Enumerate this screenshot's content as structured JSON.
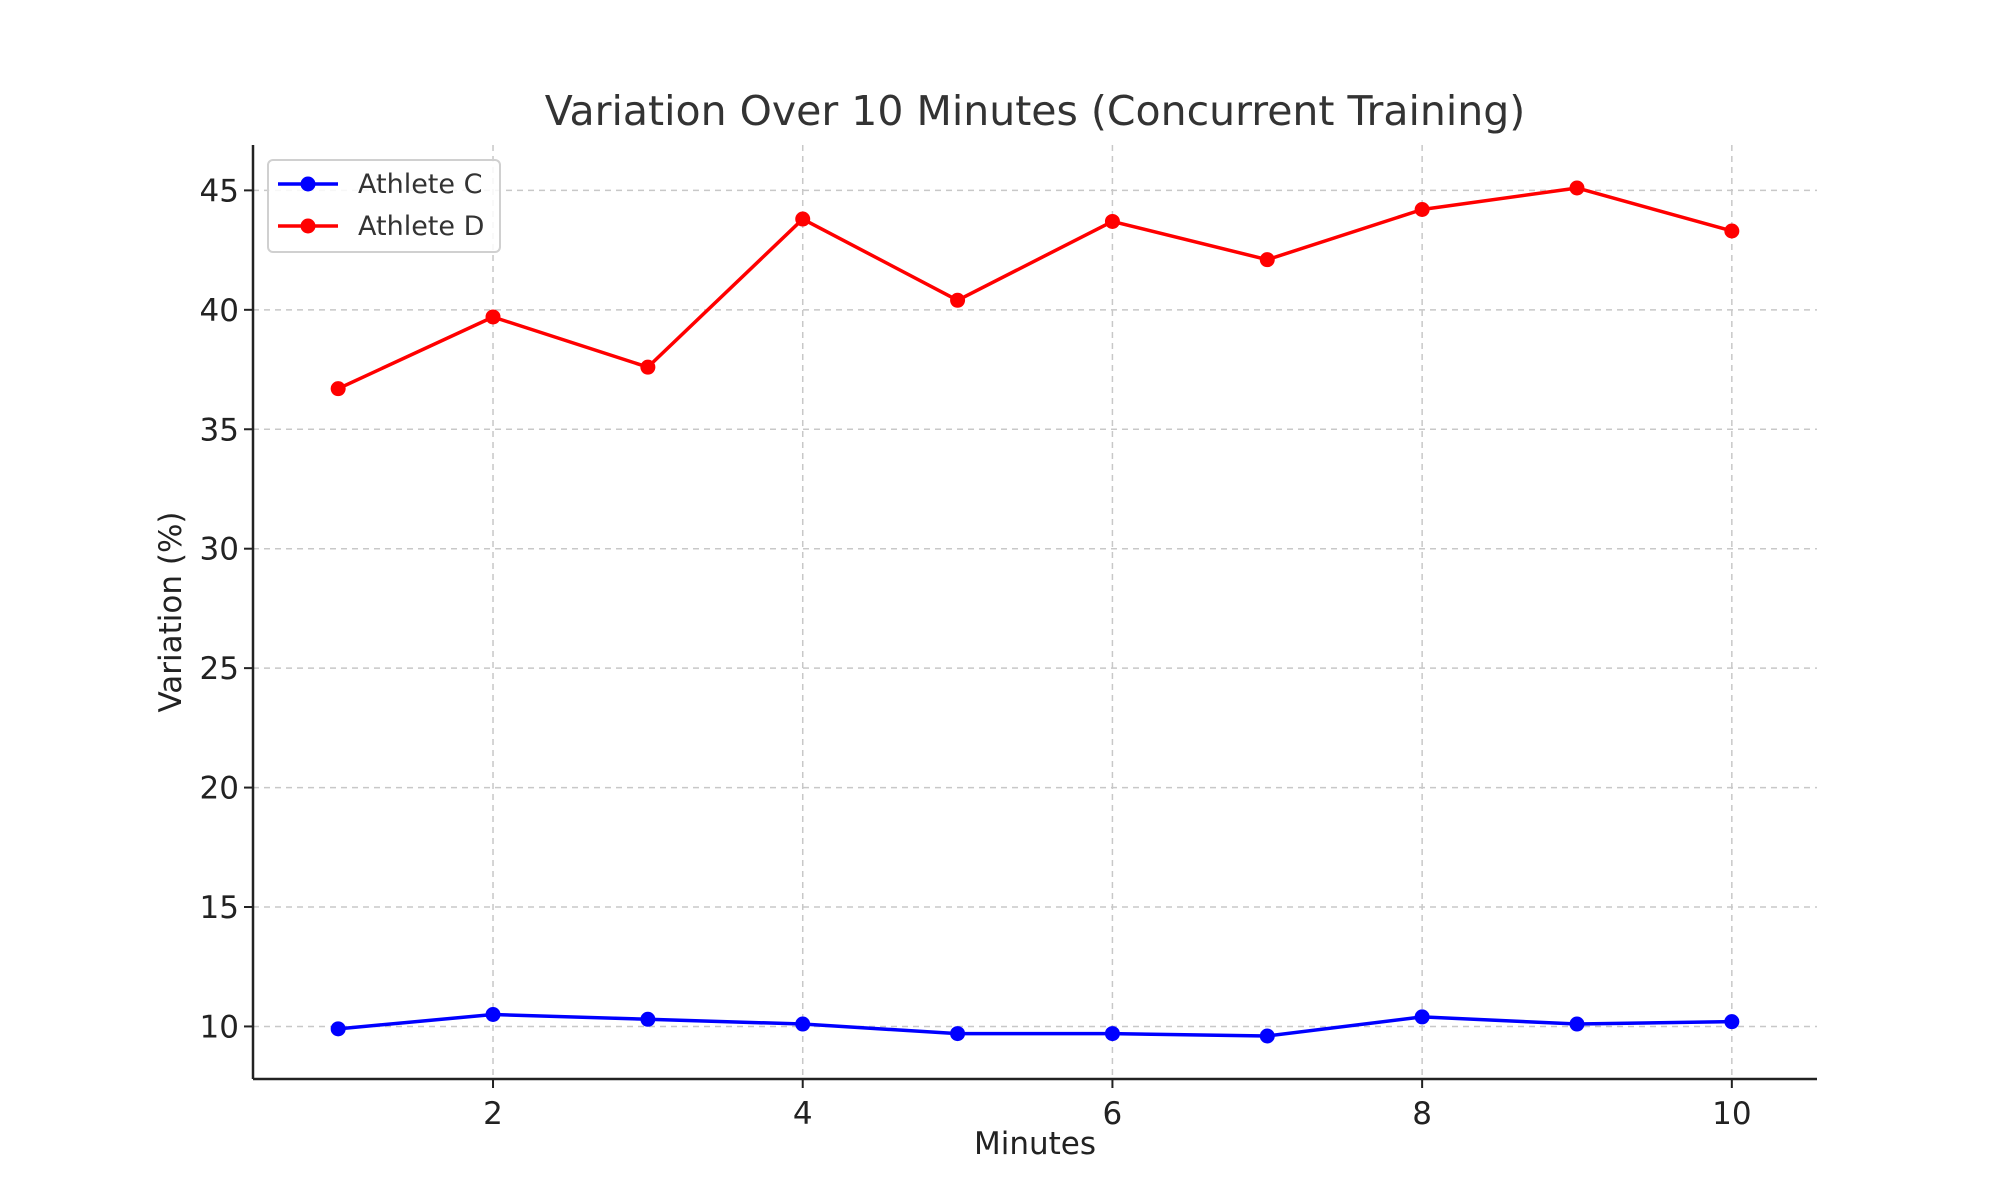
{
  "chart_data": {
    "type": "line",
    "title": "Variation Over 10 Minutes (Concurrent Training)",
    "xlabel": "Minutes",
    "ylabel": "Variation (%)",
    "x": [
      1,
      2,
      3,
      4,
      5,
      6,
      7,
      8,
      9,
      10
    ],
    "xlim": [
      0.45,
      10.55
    ],
    "ylim": [
      7.8,
      46.9
    ],
    "xticks": [
      2,
      4,
      6,
      8,
      10
    ],
    "yticks": [
      10,
      15,
      20,
      25,
      30,
      35,
      40,
      45
    ],
    "grid": true,
    "legend_position": "top-left",
    "series": [
      {
        "name": "Athlete C",
        "color": "#0000ff",
        "values": [
          9.9,
          10.5,
          10.3,
          10.1,
          9.7,
          9.7,
          9.6,
          10.4,
          10.1,
          10.2
        ]
      },
      {
        "name": "Athlete D",
        "color": "#ff0000",
        "values": [
          36.7,
          39.7,
          37.6,
          43.8,
          40.4,
          43.7,
          42.1,
          44.2,
          45.1,
          43.3
        ]
      }
    ]
  }
}
